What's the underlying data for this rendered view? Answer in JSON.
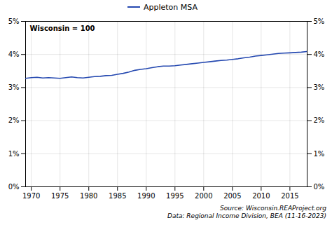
{
  "chart_data": {
    "type": "line",
    "annotation": "Wisconsin = 100",
    "caption": "Source: Wisconsin.REAProject.org\nData: Regional Income Division, BEA (11-16-2023)",
    "x": [
      1969,
      1970,
      1971,
      1972,
      1973,
      1974,
      1975,
      1976,
      1977,
      1978,
      1979,
      1980,
      1981,
      1982,
      1983,
      1984,
      1985,
      1986,
      1987,
      1988,
      1989,
      1990,
      1991,
      1992,
      1993,
      1994,
      1995,
      1996,
      1997,
      1998,
      1999,
      2000,
      2001,
      2002,
      2003,
      2004,
      2005,
      2006,
      2007,
      2008,
      2009,
      2010,
      2011,
      2012,
      2013,
      2014,
      2015,
      2016,
      2017,
      2018
    ],
    "series": [
      {
        "name": "Appleton MSA",
        "color": "#2448b0",
        "values": [
          3.28,
          3.3,
          3.31,
          3.29,
          3.3,
          3.29,
          3.28,
          3.3,
          3.32,
          3.3,
          3.29,
          3.31,
          3.33,
          3.34,
          3.36,
          3.37,
          3.4,
          3.43,
          3.47,
          3.52,
          3.55,
          3.57,
          3.6,
          3.63,
          3.65,
          3.65,
          3.66,
          3.68,
          3.7,
          3.72,
          3.74,
          3.76,
          3.78,
          3.8,
          3.82,
          3.83,
          3.85,
          3.87,
          3.9,
          3.92,
          3.95,
          3.97,
          3.99,
          4.01,
          4.03,
          4.04,
          4.05,
          4.06,
          4.07,
          4.09
        ]
      }
    ],
    "xlim": [
      1969,
      2018
    ],
    "xticks": [
      1970,
      1975,
      1980,
      1985,
      1990,
      1995,
      2000,
      2005,
      2010,
      2015
    ],
    "ylim": [
      0,
      5
    ],
    "yticks": [
      {
        "value": 0,
        "label": "0%"
      },
      {
        "value": 1,
        "label": "1%"
      },
      {
        "value": 2,
        "label": "2%"
      },
      {
        "value": 3,
        "label": "3%"
      },
      {
        "value": 4,
        "label": "4%"
      },
      {
        "value": 5,
        "label": "5%"
      }
    ],
    "y2lim": [
      0,
      5
    ],
    "y2ticks": [
      {
        "value": 0,
        "label": "0%"
      },
      {
        "value": 1,
        "label": "1%"
      },
      {
        "value": 2,
        "label": "2%"
      },
      {
        "value": 3,
        "label": "3%"
      },
      {
        "value": 4,
        "label": "4%"
      },
      {
        "value": 5,
        "label": "5%"
      }
    ],
    "grid": true,
    "legend": "top"
  }
}
